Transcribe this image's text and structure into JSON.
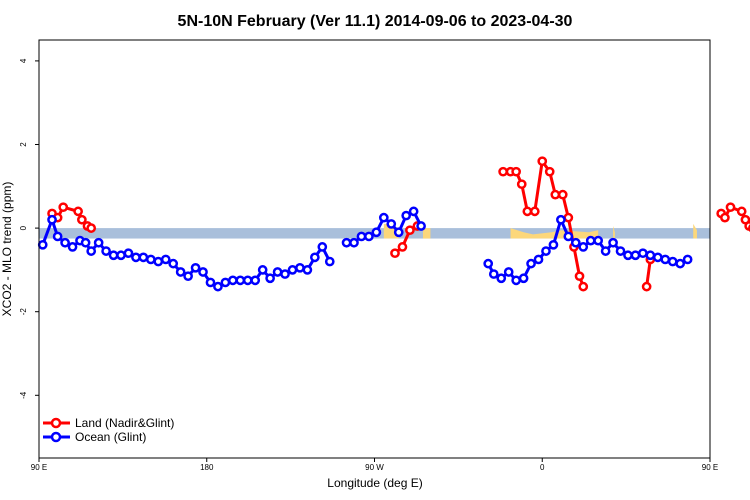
{
  "chart_data": {
    "type": "line",
    "title": "5N-10N February (Ver 11.1)   2014-09-06 to 2023-04-30",
    "xlabel": "Longitude (deg E)",
    "ylabel": "XCO2 - MLO trend (ppm)",
    "xlim": [
      90,
      450
    ],
    "ylim": [
      -5.5,
      4.5
    ],
    "x_ticks": [
      {
        "value": 90,
        "label": "90 E"
      },
      {
        "value": 180,
        "label": "180"
      },
      {
        "value": 270,
        "label": "90 W"
      },
      {
        "value": 360,
        "label": "0"
      },
      {
        "value": 450,
        "label": "90 E"
      },
      {
        "value": 540,
        "label": "180"
      }
    ],
    "y_ticks": [
      {
        "value": -4,
        "label": "-4"
      },
      {
        "value": -2,
        "label": "-2"
      },
      {
        "value": 0,
        "label": "0"
      },
      {
        "value": 2,
        "label": "2"
      },
      {
        "value": 4,
        "label": "4"
      }
    ],
    "band": {
      "y_min": -0.25,
      "y_max": 0.0,
      "color": "#a9bfdb",
      "land_color": "#fcd77b"
    },
    "land_segments": [
      [
        [
          275,
          0.1
        ],
        [
          280,
          0.1
        ],
        [
          283,
          -0.1
        ]
      ],
      [
        [
          296,
          0.0
        ],
        [
          300,
          0.0
        ]
      ],
      [
        [
          343,
          0.0
        ],
        [
          350,
          -0.1
        ],
        [
          355,
          -0.15
        ],
        [
          365,
          -0.1
        ],
        [
          370,
          -0.05
        ],
        [
          385,
          -0.1
        ],
        [
          390,
          -0.05
        ]
      ],
      [
        [
          398,
          0.05
        ],
        [
          399,
          -0.1
        ]
      ],
      [
        [
          441,
          0.1
        ],
        [
          443,
          -0.05
        ]
      ]
    ],
    "series": [
      {
        "name": "Land (Nadir&Glint)",
        "color": "#ff0000",
        "segments": [
          [
            [
              97,
              0.35
            ],
            [
              100,
              0.25
            ],
            [
              103,
              0.5
            ],
            [
              111,
              0.4
            ],
            [
              113,
              0.2
            ],
            [
              116,
              0.05
            ],
            [
              118,
              0.0
            ]
          ],
          [
            [
              281,
              -0.6
            ],
            [
              285,
              -0.45
            ],
            [
              289,
              -0.05
            ],
            [
              293,
              0.05
            ]
          ],
          [
            [
              339,
              1.35
            ],
            [
              343,
              1.35
            ],
            [
              346,
              1.35
            ],
            [
              349,
              1.05
            ],
            [
              352,
              0.4
            ],
            [
              356,
              0.4
            ],
            [
              360,
              1.6
            ],
            [
              364,
              1.35
            ],
            [
              367,
              0.8
            ],
            [
              371,
              0.8
            ],
            [
              374,
              0.25
            ],
            [
              377,
              -0.45
            ],
            [
              380,
              -1.15
            ],
            [
              382,
              -1.4
            ]
          ],
          [
            [
              416,
              -1.4
            ],
            [
              418,
              -0.75
            ]
          ],
          [
            [
              456,
              0.35
            ],
            [
              458,
              0.25
            ],
            [
              461,
              0.5
            ],
            [
              467,
              0.4
            ],
            [
              469,
              0.2
            ],
            [
              471,
              0.05
            ],
            [
              473,
              0.0
            ]
          ]
        ]
      },
      {
        "name": "Ocean (Glint)",
        "color": "#0000ff",
        "segments": [
          [
            [
              92,
              -0.4
            ],
            [
              97,
              0.2
            ],
            [
              100,
              -0.2
            ],
            [
              104,
              -0.35
            ],
            [
              108,
              -0.45
            ],
            [
              112,
              -0.3
            ],
            [
              115,
              -0.35
            ],
            [
              118,
              -0.55
            ],
            [
              122,
              -0.35
            ],
            [
              126,
              -0.55
            ],
            [
              130,
              -0.65
            ],
            [
              134,
              -0.65
            ],
            [
              138,
              -0.6
            ],
            [
              142,
              -0.7
            ],
            [
              146,
              -0.7
            ],
            [
              150,
              -0.75
            ],
            [
              154,
              -0.8
            ],
            [
              158,
              -0.75
            ],
            [
              162,
              -0.85
            ],
            [
              166,
              -1.05
            ],
            [
              170,
              -1.15
            ],
            [
              174,
              -0.95
            ],
            [
              178,
              -1.05
            ],
            [
              182,
              -1.3
            ],
            [
              186,
              -1.4
            ],
            [
              190,
              -1.3
            ],
            [
              194,
              -1.25
            ],
            [
              198,
              -1.25
            ],
            [
              202,
              -1.25
            ],
            [
              206,
              -1.25
            ],
            [
              210,
              -1.0
            ],
            [
              214,
              -1.2
            ],
            [
              218,
              -1.05
            ],
            [
              222,
              -1.1
            ],
            [
              226,
              -1.0
            ],
            [
              230,
              -0.95
            ],
            [
              234,
              -1.0
            ],
            [
              238,
              -0.7
            ],
            [
              242,
              -0.45
            ],
            [
              246,
              -0.8
            ]
          ],
          [
            [
              255,
              -0.35
            ],
            [
              259,
              -0.35
            ],
            [
              263,
              -0.2
            ],
            [
              267,
              -0.2
            ],
            [
              271,
              -0.1
            ],
            [
              275,
              0.25
            ],
            [
              279,
              0.1
            ],
            [
              283,
              -0.1
            ],
            [
              287,
              0.3
            ],
            [
              291,
              0.4
            ],
            [
              295,
              0.05
            ]
          ],
          [
            [
              331,
              -0.85
            ],
            [
              334,
              -1.1
            ],
            [
              338,
              -1.2
            ],
            [
              342,
              -1.05
            ],
            [
              346,
              -1.25
            ],
            [
              350,
              -1.2
            ],
            [
              354,
              -0.85
            ],
            [
              358,
              -0.75
            ],
            [
              362,
              -0.55
            ],
            [
              366,
              -0.4
            ],
            [
              370,
              0.2
            ],
            [
              374,
              -0.2
            ],
            [
              378,
              -0.35
            ],
            [
              382,
              -0.45
            ],
            [
              386,
              -0.3
            ],
            [
              390,
              -0.3
            ],
            [
              394,
              -0.55
            ],
            [
              398,
              -0.35
            ],
            [
              402,
              -0.55
            ],
            [
              406,
              -0.65
            ],
            [
              410,
              -0.65
            ],
            [
              414,
              -0.6
            ],
            [
              418,
              -0.65
            ],
            [
              422,
              -0.7
            ],
            [
              426,
              -0.75
            ],
            [
              430,
              -0.8
            ],
            [
              434,
              -0.85
            ],
            [
              438,
              -0.75
            ]
          ]
        ]
      }
    ],
    "legend": {
      "placement": "bottom-left",
      "entries": [
        "Land (Nadir&Glint)",
        "Ocean (Glint)"
      ]
    },
    "grid": false
  }
}
